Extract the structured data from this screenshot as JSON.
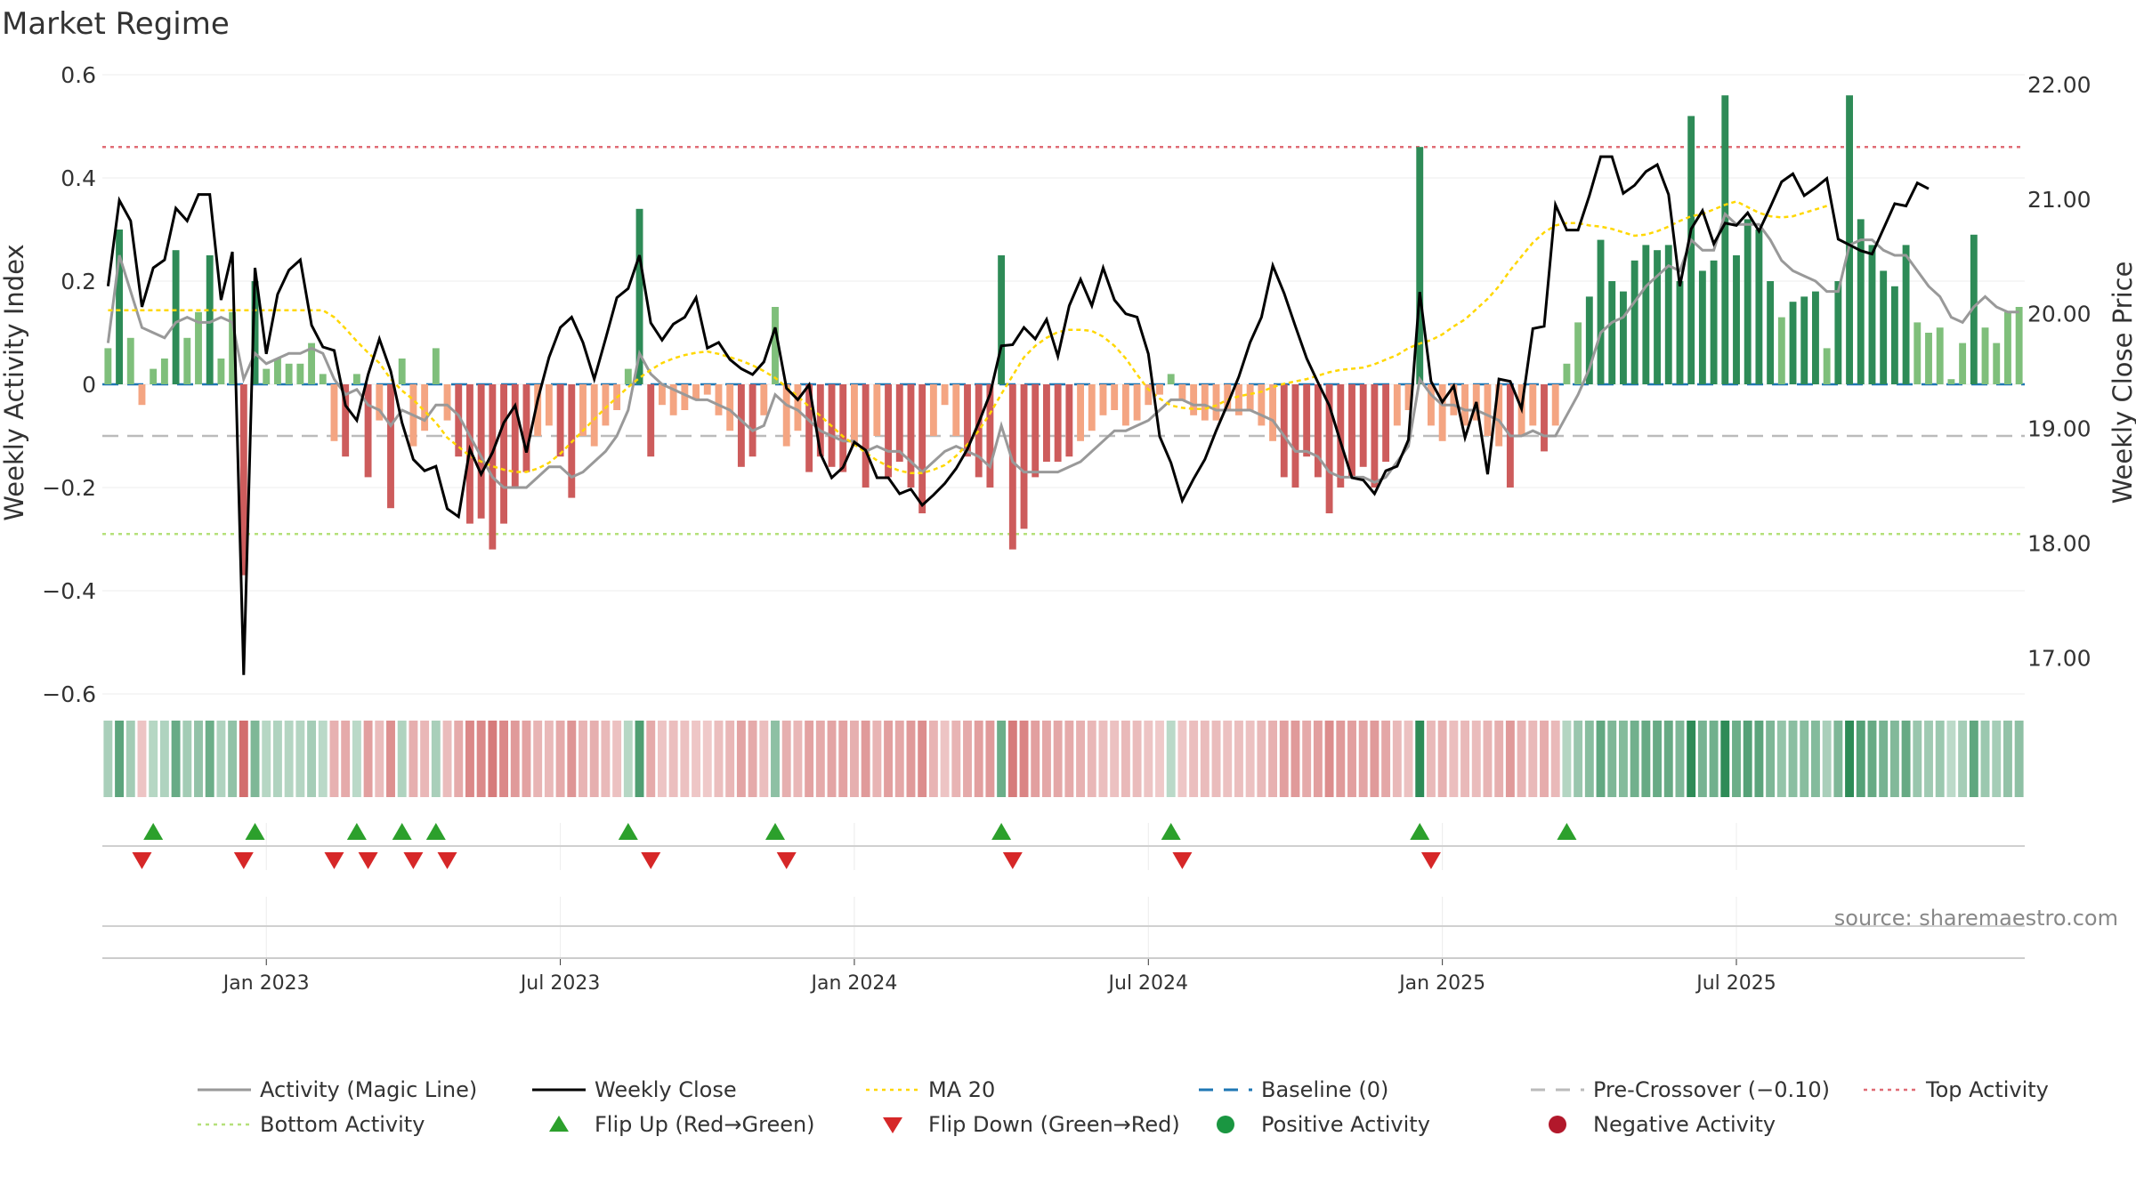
{
  "chart_data": {
    "type": "bar",
    "title": "Market Regime",
    "source": "source: sharemaestro.com",
    "left_axis": {
      "label": "Weekly Activity Index",
      "ylim": [
        -0.6,
        0.6
      ],
      "ticks": [
        "0.6",
        "0.4",
        "0.2",
        "0",
        "−0.2",
        "−0.4",
        "−0.6"
      ]
    },
    "right_axis": {
      "label": "Weekly Close Price",
      "ylim": [
        16.7,
        22.1
      ],
      "ticks": [
        "22.00",
        "21.00",
        "20.00",
        "19.00",
        "18.00",
        "17.00"
      ]
    },
    "x_ticks": [
      "Jan 2023",
      "Jul 2023",
      "Jan 2024",
      "Jul 2024",
      "Jan 2025",
      "Jul 2025"
    ],
    "x_tick_weeks": [
      14,
      40,
      66,
      92,
      118,
      144
    ],
    "reference_lines": {
      "top_activity": 0.46,
      "bottom_activity": -0.29,
      "pre_crossover": -0.1,
      "baseline": 0
    },
    "colors": {
      "strong_green": "#2e8b57",
      "light_green": "#7fbf7b",
      "strong_red": "#cd5c5c",
      "light_red": "#f4a582",
      "close": "#000000",
      "magic": "#999999",
      "ma20": "#ffd700",
      "baseline": "#1f77b4",
      "pre_crossover": "#bbbbbb",
      "top": "#e06c75",
      "bottom": "#b5e07a",
      "flip_up": "#2ca02c",
      "flip_down": "#d62728",
      "positive": "#1a9641",
      "negative": "#b2182b"
    },
    "series": [
      {
        "name": "Activity",
        "values": [
          0.07,
          0.3,
          0.09,
          -0.04,
          0.03,
          0.05,
          0.26,
          0.09,
          0.14,
          0.25,
          0.05,
          0.14,
          -0.37,
          0.2,
          0.03,
          0.05,
          0.04,
          0.04,
          0.08,
          0.02,
          -0.11,
          -0.14,
          0.02,
          -0.18,
          -0.07,
          -0.24,
          0.05,
          -0.12,
          -0.09,
          0.07,
          -0.07,
          -0.14,
          -0.27,
          -0.26,
          -0.32,
          -0.27,
          -0.2,
          -0.17,
          -0.1,
          -0.08,
          -0.14,
          -0.22,
          -0.1,
          -0.12,
          -0.08,
          -0.05,
          0.03,
          0.34,
          -0.14,
          -0.04,
          -0.06,
          -0.05,
          -0.03,
          -0.02,
          -0.06,
          -0.09,
          -0.16,
          -0.14,
          -0.06,
          0.15,
          -0.12,
          -0.09,
          -0.17,
          -0.14,
          -0.16,
          -0.17,
          -0.12,
          -0.2,
          -0.1,
          -0.18,
          -0.15,
          -0.2,
          -0.25,
          -0.1,
          -0.04,
          -0.1,
          -0.14,
          -0.18,
          -0.2,
          0.25,
          -0.32,
          -0.28,
          -0.18,
          -0.15,
          -0.15,
          -0.14,
          -0.11,
          -0.09,
          -0.06,
          -0.05,
          -0.08,
          -0.07,
          -0.04,
          -0.02,
          0.02,
          -0.03,
          -0.06,
          -0.07,
          -0.07,
          -0.05,
          -0.06,
          -0.05,
          -0.08,
          -0.11,
          -0.18,
          -0.2,
          -0.14,
          -0.18,
          -0.25,
          -0.2,
          -0.18,
          -0.16,
          -0.2,
          -0.15,
          -0.08,
          -0.05,
          0.46,
          -0.08,
          -0.11,
          -0.06,
          -0.08,
          -0.07,
          -0.1,
          -0.12,
          -0.2,
          -0.1,
          -0.08,
          -0.13,
          -0.08,
          0.04,
          0.12,
          0.17,
          0.28,
          0.2,
          0.18,
          0.24,
          0.27,
          0.26,
          0.27,
          0.2,
          0.52,
          0.22,
          0.24,
          0.56,
          0.25,
          0.32,
          0.3,
          0.2,
          0.13,
          0.16,
          0.17,
          0.18,
          0.07,
          0.2,
          0.56,
          0.32,
          0.27,
          0.22,
          0.19,
          0.27,
          0.12,
          0.1,
          0.11,
          0.01,
          0.08,
          0.29,
          0.11,
          0.08,
          0.14,
          0.15
        ]
      },
      {
        "name": "Activity (Magic Line)",
        "values": [
          0.08,
          0.25,
          0.18,
          0.11,
          0.1,
          0.09,
          0.12,
          0.13,
          0.12,
          0.12,
          0.13,
          0.12,
          0.01,
          0.06,
          0.04,
          0.05,
          0.06,
          0.06,
          0.07,
          0.06,
          0.01,
          -0.02,
          -0.01,
          -0.04,
          -0.05,
          -0.08,
          -0.05,
          -0.06,
          -0.07,
          -0.04,
          -0.04,
          -0.06,
          -0.1,
          -0.14,
          -0.18,
          -0.2,
          -0.2,
          -0.2,
          -0.18,
          -0.16,
          -0.16,
          -0.18,
          -0.17,
          -0.15,
          -0.13,
          -0.1,
          -0.05,
          0.06,
          0.02,
          0.0,
          -0.01,
          -0.02,
          -0.03,
          -0.03,
          -0.04,
          -0.05,
          -0.07,
          -0.09,
          -0.08,
          -0.02,
          -0.04,
          -0.05,
          -0.07,
          -0.09,
          -0.1,
          -0.11,
          -0.11,
          -0.13,
          -0.12,
          -0.13,
          -0.13,
          -0.15,
          -0.17,
          -0.15,
          -0.13,
          -0.12,
          -0.13,
          -0.14,
          -0.16,
          -0.08,
          -0.15,
          -0.17,
          -0.17,
          -0.17,
          -0.17,
          -0.16,
          -0.15,
          -0.13,
          -0.11,
          -0.09,
          -0.09,
          -0.08,
          -0.07,
          -0.05,
          -0.03,
          -0.03,
          -0.04,
          -0.04,
          -0.05,
          -0.05,
          -0.05,
          -0.05,
          -0.06,
          -0.07,
          -0.1,
          -0.13,
          -0.13,
          -0.14,
          -0.17,
          -0.18,
          -0.18,
          -0.18,
          -0.19,
          -0.18,
          -0.15,
          -0.12,
          0.01,
          -0.02,
          -0.04,
          -0.04,
          -0.05,
          -0.05,
          -0.06,
          -0.07,
          -0.1,
          -0.1,
          -0.09,
          -0.1,
          -0.1,
          -0.06,
          -0.02,
          0.03,
          0.1,
          0.12,
          0.13,
          0.16,
          0.19,
          0.21,
          0.23,
          0.22,
          0.28,
          0.26,
          0.26,
          0.33,
          0.31,
          0.31,
          0.31,
          0.28,
          0.24,
          0.22,
          0.21,
          0.2,
          0.18,
          0.18,
          0.27,
          0.28,
          0.28,
          0.26,
          0.25,
          0.25,
          0.22,
          0.19,
          0.17,
          0.13,
          0.12,
          0.15,
          0.17,
          0.15,
          0.14,
          0.14
        ]
      },
      {
        "name": "Weekly Close",
        "values": [
          20.24,
          20.99,
          20.81,
          20.06,
          20.4,
          20.47,
          20.92,
          20.81,
          21.04,
          21.04,
          20.12,
          20.54,
          16.85,
          20.4,
          19.65,
          20.17,
          20.38,
          20.47,
          19.9,
          19.71,
          19.68,
          19.2,
          19.07,
          19.47,
          19.78,
          19.5,
          19.05,
          18.73,
          18.63,
          18.67,
          18.3,
          18.23,
          18.82,
          18.6,
          18.79,
          19.05,
          19.2,
          18.79,
          19.25,
          19.62,
          19.88,
          19.97,
          19.75,
          19.43,
          19.78,
          20.14,
          20.22,
          20.51,
          19.92,
          19.77,
          19.91,
          19.97,
          20.14,
          19.7,
          19.75,
          19.6,
          19.52,
          19.47,
          19.58,
          19.88,
          19.35,
          19.25,
          19.38,
          18.78,
          18.57,
          18.66,
          18.88,
          18.81,
          18.57,
          18.57,
          18.43,
          18.47,
          18.33,
          18.42,
          18.52,
          18.65,
          18.82,
          19.05,
          19.3,
          19.72,
          19.73,
          19.88,
          19.78,
          19.95,
          19.63,
          20.07,
          20.3,
          20.07,
          20.4,
          20.12,
          20.0,
          19.97,
          19.65,
          18.93,
          18.7,
          18.37,
          18.56,
          18.73,
          18.98,
          19.21,
          19.45,
          19.75,
          19.97,
          20.42,
          20.18,
          19.89,
          19.61,
          19.4,
          19.2,
          18.88,
          18.57,
          18.55,
          18.43,
          18.63,
          18.67,
          18.9,
          20.19,
          19.41,
          19.23,
          19.37,
          18.92,
          19.23,
          18.6,
          19.43,
          19.41,
          19.17,
          19.87,
          19.89,
          20.95,
          20.73,
          20.73,
          21.03,
          21.37,
          21.37,
          21.05,
          21.12,
          21.24,
          21.3,
          21.04,
          20.24,
          20.74,
          20.9,
          20.61,
          20.79,
          20.77,
          20.88,
          20.72,
          20.93,
          21.15,
          21.22,
          21.03,
          21.1,
          21.18,
          20.65,
          20.6,
          20.55,
          20.52,
          20.74,
          20.96,
          20.94,
          21.14,
          21.09
        ]
      },
      {
        "name": "MA 20",
        "values": [
          20.03,
          20.03,
          20.03,
          20.03,
          20.03,
          20.03,
          20.03,
          20.03,
          20.03,
          20.03,
          20.03,
          20.03,
          20.03,
          20.03,
          20.03,
          20.03,
          20.03,
          20.03,
          20.03,
          20.03,
          19.97,
          19.87,
          19.76,
          19.66,
          19.57,
          19.43,
          19.33,
          19.25,
          19.15,
          19.05,
          18.92,
          18.84,
          18.76,
          18.71,
          18.67,
          18.64,
          18.62,
          18.62,
          18.65,
          18.7,
          18.78,
          18.88,
          18.98,
          19.08,
          19.18,
          19.27,
          19.36,
          19.44,
          19.51,
          19.57,
          19.61,
          19.64,
          19.66,
          19.67,
          19.65,
          19.62,
          19.59,
          19.55,
          19.5,
          19.44,
          19.36,
          19.28,
          19.19,
          19.11,
          19.02,
          18.93,
          18.86,
          18.79,
          18.72,
          18.67,
          18.63,
          18.61,
          18.61,
          18.64,
          18.68,
          18.76,
          18.86,
          18.98,
          19.13,
          19.3,
          19.46,
          19.62,
          19.72,
          19.79,
          19.84,
          19.86,
          19.86,
          19.85,
          19.8,
          19.72,
          19.61,
          19.47,
          19.34,
          19.26,
          19.2,
          19.18,
          19.17,
          19.17,
          19.2,
          19.25,
          19.28,
          19.3,
          19.32,
          19.36,
          19.39,
          19.41,
          19.43,
          19.46,
          19.49,
          19.51,
          19.52,
          19.53,
          19.56,
          19.6,
          19.64,
          19.7,
          19.74,
          19.77,
          19.82,
          19.89,
          19.95,
          20.04,
          20.13,
          20.24,
          20.38,
          20.5,
          20.62,
          20.71,
          20.77,
          20.79,
          20.79,
          20.77,
          20.76,
          20.74,
          20.71,
          20.68,
          20.69,
          20.72,
          20.76,
          20.81,
          20.85,
          20.87,
          20.91,
          20.95,
          20.98,
          20.93,
          20.88,
          20.85,
          20.84,
          20.85,
          20.88,
          20.91,
          20.94
        ]
      }
    ],
    "legend": [
      {
        "label": "Activity (Magic Line)",
        "marker": "line",
        "color": "#999999"
      },
      {
        "label": "Weekly Close",
        "marker": "line",
        "color": "#000000"
      },
      {
        "label": "MA 20",
        "marker": "dotted",
        "color": "#ffd700"
      },
      {
        "label": "Baseline (0)",
        "marker": "dashed",
        "color": "#1f77b4"
      },
      {
        "label": "Pre-Crossover (−0.10)",
        "marker": "dashed",
        "color": "#bbbbbb"
      },
      {
        "label": "Top Activity",
        "marker": "dotted",
        "color": "#e06c75"
      },
      {
        "label": "Bottom Activity",
        "marker": "dotted",
        "color": "#b5e07a"
      },
      {
        "label": "Flip Up (Red→Green)",
        "marker": "triangle-up",
        "color": "#2ca02c"
      },
      {
        "label": "Flip Down (Green→Red)",
        "marker": "triangle-down",
        "color": "#d62728"
      },
      {
        "label": "Positive Activity",
        "marker": "circle",
        "color": "#1a9641"
      },
      {
        "label": "Negative Activity",
        "marker": "circle",
        "color": "#b2182b"
      }
    ]
  }
}
